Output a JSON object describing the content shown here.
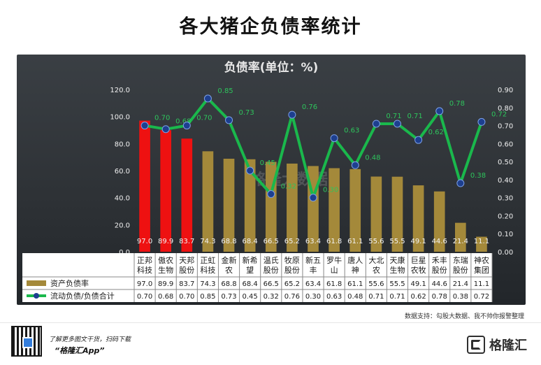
{
  "title": "各大猪企负债率统计",
  "chart_data": {
    "title": "负债率(单位：%)",
    "type": "bar+line",
    "categories": [
      "正邦\n科技",
      "傲农\n生物",
      "天邦\n股份",
      "正虹\n科技",
      "金新\n农",
      "新希\n望",
      "温氏\n股份",
      "牧原\n股份",
      "新五\n丰",
      "罗牛\n山",
      "唐人\n神",
      "大北\n农",
      "天康\n生物",
      "巨星\n农牧",
      "禾丰\n股份",
      "东瑞\n股份",
      "神农\n集团"
    ],
    "series": [
      {
        "name": "资产负债率",
        "axis": "left",
        "type": "bar",
        "values": [
          97.0,
          89.9,
          83.7,
          74.3,
          68.8,
          68.4,
          66.5,
          65.2,
          63.4,
          61.8,
          61.1,
          55.6,
          55.5,
          49.1,
          44.6,
          21.4,
          11.1
        ],
        "labels": [
          "97.0",
          "89.9",
          "83.7",
          "74.3",
          "68.8",
          "68.4",
          "66.5",
          "65.2",
          "63.4",
          "61.8",
          "61.1",
          "55.6",
          "55.5",
          "49.1",
          "44.6",
          "21.4",
          "11.1"
        ],
        "highlight_color": "#ee1111",
        "highlight_count": 3,
        "color": "#a4893a"
      },
      {
        "name": "流动负债/负债合计",
        "axis": "right",
        "type": "line",
        "values": [
          0.7,
          0.68,
          0.7,
          0.85,
          0.73,
          0.45,
          0.32,
          0.76,
          0.3,
          0.63,
          0.48,
          0.71,
          0.71,
          0.62,
          0.78,
          0.38,
          0.72
        ],
        "labels": [
          "0.70",
          "0.68",
          "0.70",
          "0.85",
          "0.73",
          "0.45",
          "0.32",
          "0.76",
          "0.30",
          "0.63",
          "0.48",
          "0.71",
          "0.71",
          "0.62",
          "0.78",
          "0.38",
          "0.72"
        ],
        "line_color": "#1ab84c",
        "marker_color": "#1d3f8f",
        "label_color": "#2ec45c"
      }
    ],
    "yleft": {
      "min": 0,
      "max": 120,
      "ticks": [
        "0.0",
        "20.0",
        "40.0",
        "60.0",
        "80.0",
        "100.0",
        "120.0"
      ]
    },
    "yright": {
      "min": 0,
      "max": 0.9,
      "ticks": [
        "0.00",
        "0.10",
        "0.20",
        "0.30",
        "0.40",
        "0.50",
        "0.60",
        "0.70",
        "0.80",
        "0.90"
      ]
    },
    "grid": false,
    "legend": "bottom-left (data table)"
  },
  "watermark": "格隆大数据",
  "source": "数据支持：勾股大数据、我不帅你报警整理",
  "footer": {
    "text1": "了解更多图文干货，扫码下载",
    "text2": "“格隆汇App”",
    "brand": "格隆汇"
  },
  "colors": {
    "panel_top": "#3a3f44",
    "panel_bottom": "#22262a",
    "table_bg": "#ffffff",
    "axis_text": "#f1f1f1"
  }
}
